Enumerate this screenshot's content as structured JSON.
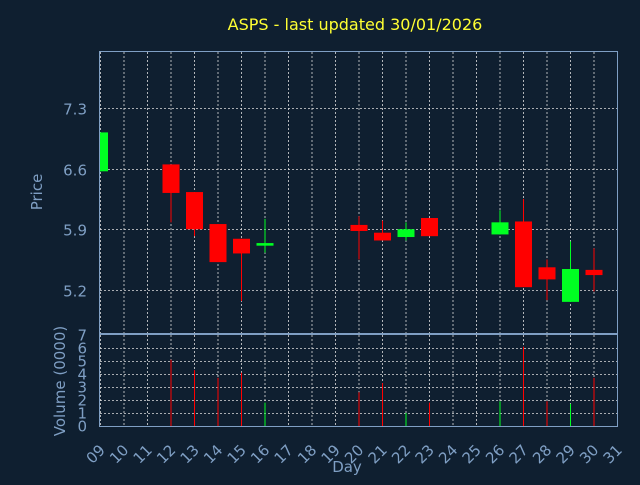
{
  "chart_data": {
    "type": "candlestick",
    "title": "ASPS - last updated 30/01/2026",
    "colors": {
      "background": "#0f1f30",
      "title": "#ffff33",
      "axis_text": "#7f9fc4",
      "grid": "#dddddd",
      "frame": "#7f9fc4",
      "up": "#00ff22",
      "down": "#ff0000"
    },
    "price_panel": {
      "ylabel": "Price",
      "ylim": [
        4.7,
        7.95
      ],
      "yticks": [
        "7.3",
        "6.6",
        "5.9",
        "5.2"
      ],
      "grid": true
    },
    "volume_panel": {
      "ylabel": "Volume (0000)",
      "ylim": [
        0,
        7
      ],
      "yticks": [
        "0",
        "1",
        "2",
        "3",
        "4",
        "5",
        "6",
        "7"
      ],
      "grid": true
    },
    "x_axis": {
      "xlabel": "Day",
      "categories": [
        "09",
        "10",
        "11",
        "12",
        "13",
        "14",
        "15",
        "16",
        "17",
        "18",
        "19",
        "20",
        "21",
        "22",
        "23",
        "24",
        "25",
        "26",
        "27",
        "28",
        "29",
        "30",
        "31"
      ]
    },
    "candles": [
      {
        "day": "09",
        "open": 6.57,
        "close": 7.02,
        "high": 7.02,
        "low": 6.57,
        "volume": 0
      },
      {
        "day": "12",
        "open": 6.65,
        "close": 6.32,
        "high": 6.65,
        "low": 5.98,
        "volume": 5.1
      },
      {
        "day": "13",
        "open": 6.33,
        "close": 5.9,
        "high": 6.33,
        "low": 5.82,
        "volume": 4.3
      },
      {
        "day": "14",
        "open": 5.96,
        "close": 5.52,
        "high": 5.96,
        "low": 5.52,
        "volume": 3.7
      },
      {
        "day": "15",
        "open": 5.79,
        "close": 5.62,
        "high": 5.79,
        "low": 5.07,
        "volume": 4.1
      },
      {
        "day": "16",
        "open": 5.71,
        "close": 5.74,
        "high": 6.02,
        "low": 5.63,
        "volume": 1.8
      },
      {
        "day": "20",
        "open": 5.95,
        "close": 5.88,
        "high": 6.05,
        "low": 5.55,
        "volume": 2.6
      },
      {
        "day": "21",
        "open": 5.86,
        "close": 5.77,
        "high": 6.0,
        "low": 5.77,
        "volume": 3.3
      },
      {
        "day": "22",
        "open": 5.81,
        "close": 5.9,
        "high": 5.98,
        "low": 5.77,
        "volume": 1.0
      },
      {
        "day": "23",
        "open": 6.03,
        "close": 5.82,
        "high": 6.03,
        "low": 5.82,
        "volume": 1.8
      },
      {
        "day": "26",
        "open": 5.84,
        "close": 5.98,
        "high": 6.12,
        "low": 5.84,
        "volume": 1.9
      },
      {
        "day": "27",
        "open": 5.99,
        "close": 5.23,
        "high": 6.25,
        "low": 5.23,
        "volume": 6.1
      },
      {
        "day": "28",
        "open": 5.46,
        "close": 5.32,
        "high": 5.55,
        "low": 5.08,
        "volume": 1.9
      },
      {
        "day": "29",
        "open": 5.06,
        "close": 5.44,
        "high": 5.76,
        "low": 5.06,
        "volume": 1.7
      },
      {
        "day": "30",
        "open": 5.43,
        "close": 5.37,
        "high": 5.68,
        "low": 5.18,
        "volume": 3.7
      }
    ]
  }
}
